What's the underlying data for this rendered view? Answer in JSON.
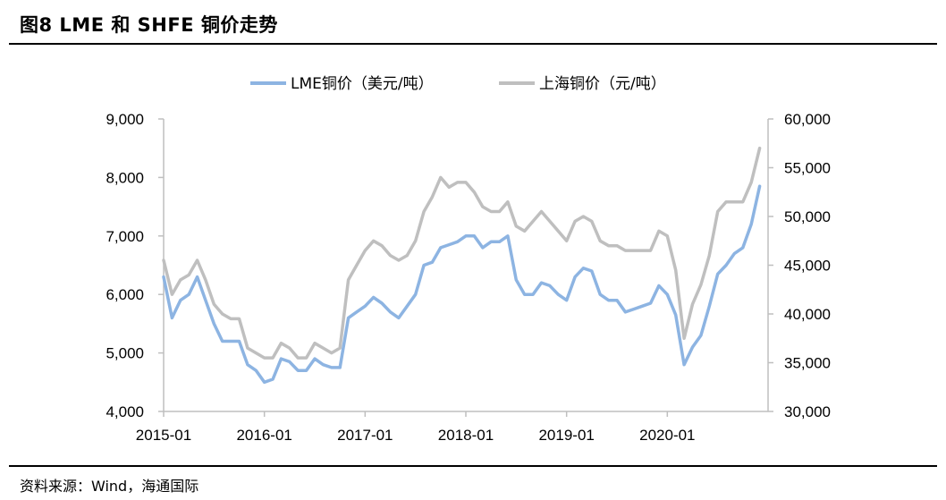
{
  "figure": {
    "title": "图8   LME 和 SHFE 铜价走势",
    "source": "资料来源：Wind，海通国际"
  },
  "colors": {
    "lme": "#8DB4E2",
    "shfe": "#BFBFBF",
    "axis": "#BFBFBF",
    "rule": "#000000"
  },
  "chart_data": {
    "type": "line",
    "grid": false,
    "legend_position": "top-center",
    "x_ticks": [
      "2015-01",
      "2016-01",
      "2017-01",
      "2018-01",
      "2019-01",
      "2020-01"
    ],
    "x_range": [
      "2015-01",
      "2020-12"
    ],
    "y_left": {
      "range": [
        4000,
        9000
      ],
      "ticks": [
        "4,000",
        "5,000",
        "6,000",
        "7,000",
        "8,000",
        "9,000"
      ]
    },
    "y_right": {
      "range": [
        30000,
        60000
      ],
      "ticks": [
        "30,000",
        "35,000",
        "40,000",
        "45,000",
        "50,000",
        "55,000",
        "60,000"
      ]
    },
    "series": [
      {
        "name": "LME铜价（美元/吨）",
        "axis": "left",
        "x": [
          "2015-01",
          "2015-02",
          "2015-03",
          "2015-04",
          "2015-05",
          "2015-06",
          "2015-07",
          "2015-08",
          "2015-09",
          "2015-10",
          "2015-11",
          "2015-12",
          "2016-01",
          "2016-02",
          "2016-03",
          "2016-04",
          "2016-05",
          "2016-06",
          "2016-07",
          "2016-08",
          "2016-09",
          "2016-10",
          "2016-11",
          "2016-12",
          "2017-01",
          "2017-02",
          "2017-03",
          "2017-04",
          "2017-05",
          "2017-06",
          "2017-07",
          "2017-08",
          "2017-09",
          "2017-10",
          "2017-11",
          "2017-12",
          "2018-01",
          "2018-02",
          "2018-03",
          "2018-04",
          "2018-05",
          "2018-06",
          "2018-07",
          "2018-08",
          "2018-09",
          "2018-10",
          "2018-11",
          "2018-12",
          "2019-01",
          "2019-02",
          "2019-03",
          "2019-04",
          "2019-05",
          "2019-06",
          "2019-07",
          "2019-08",
          "2019-09",
          "2019-10",
          "2019-11",
          "2019-12",
          "2020-01",
          "2020-02",
          "2020-03",
          "2020-04",
          "2020-05",
          "2020-06",
          "2020-07",
          "2020-08",
          "2020-09",
          "2020-10",
          "2020-11",
          "2020-12"
        ],
        "values": [
          6300,
          5600,
          5900,
          6000,
          6300,
          5900,
          5500,
          5200,
          5200,
          5200,
          4800,
          4700,
          4500,
          4550,
          4900,
          4850,
          4700,
          4700,
          4900,
          4800,
          4750,
          4750,
          5600,
          5700,
          5800,
          5950,
          5850,
          5700,
          5600,
          5800,
          6000,
          6500,
          6550,
          6800,
          6850,
          6900,
          7000,
          7000,
          6800,
          6900,
          6900,
          7000,
          6250,
          6000,
          6000,
          6200,
          6150,
          6000,
          5900,
          6300,
          6450,
          6400,
          6000,
          5900,
          5900,
          5700,
          5750,
          5800,
          5850,
          6150,
          6000,
          5650,
          4800,
          5100,
          5300,
          5800,
          6350,
          6500,
          6700,
          6800,
          7200,
          7850
        ]
      },
      {
        "name": "上海铜价（元/吨）",
        "axis": "right",
        "x": [
          "2015-01",
          "2015-02",
          "2015-03",
          "2015-04",
          "2015-05",
          "2015-06",
          "2015-07",
          "2015-08",
          "2015-09",
          "2015-10",
          "2015-11",
          "2015-12",
          "2016-01",
          "2016-02",
          "2016-03",
          "2016-04",
          "2016-05",
          "2016-06",
          "2016-07",
          "2016-08",
          "2016-09",
          "2016-10",
          "2016-11",
          "2016-12",
          "2017-01",
          "2017-02",
          "2017-03",
          "2017-04",
          "2017-05",
          "2017-06",
          "2017-07",
          "2017-08",
          "2017-09",
          "2017-10",
          "2017-11",
          "2017-12",
          "2018-01",
          "2018-02",
          "2018-03",
          "2018-04",
          "2018-05",
          "2018-06",
          "2018-07",
          "2018-08",
          "2018-09",
          "2018-10",
          "2018-11",
          "2018-12",
          "2019-01",
          "2019-02",
          "2019-03",
          "2019-04",
          "2019-05",
          "2019-06",
          "2019-07",
          "2019-08",
          "2019-09",
          "2019-10",
          "2019-11",
          "2019-12",
          "2020-01",
          "2020-02",
          "2020-03",
          "2020-04",
          "2020-05",
          "2020-06",
          "2020-07",
          "2020-08",
          "2020-09",
          "2020-10",
          "2020-11",
          "2020-12"
        ],
        "values": [
          45500,
          42000,
          43500,
          44000,
          45500,
          43500,
          41000,
          40000,
          39500,
          39500,
          36500,
          36000,
          35500,
          35500,
          37000,
          36500,
          35500,
          35500,
          37000,
          36500,
          36000,
          36500,
          43500,
          45000,
          46500,
          47500,
          47000,
          46000,
          45500,
          46000,
          47500,
          50500,
          52000,
          54000,
          53000,
          53500,
          53500,
          52500,
          51000,
          50500,
          50500,
          51500,
          49000,
          48500,
          49500,
          50500,
          49500,
          48500,
          47500,
          49500,
          50000,
          49500,
          47500,
          47000,
          47000,
          46500,
          46500,
          46500,
          46500,
          48500,
          48000,
          44500,
          37500,
          41000,
          43000,
          46000,
          50500,
          51500,
          51500,
          51500,
          53500,
          57000
        ]
      }
    ]
  }
}
